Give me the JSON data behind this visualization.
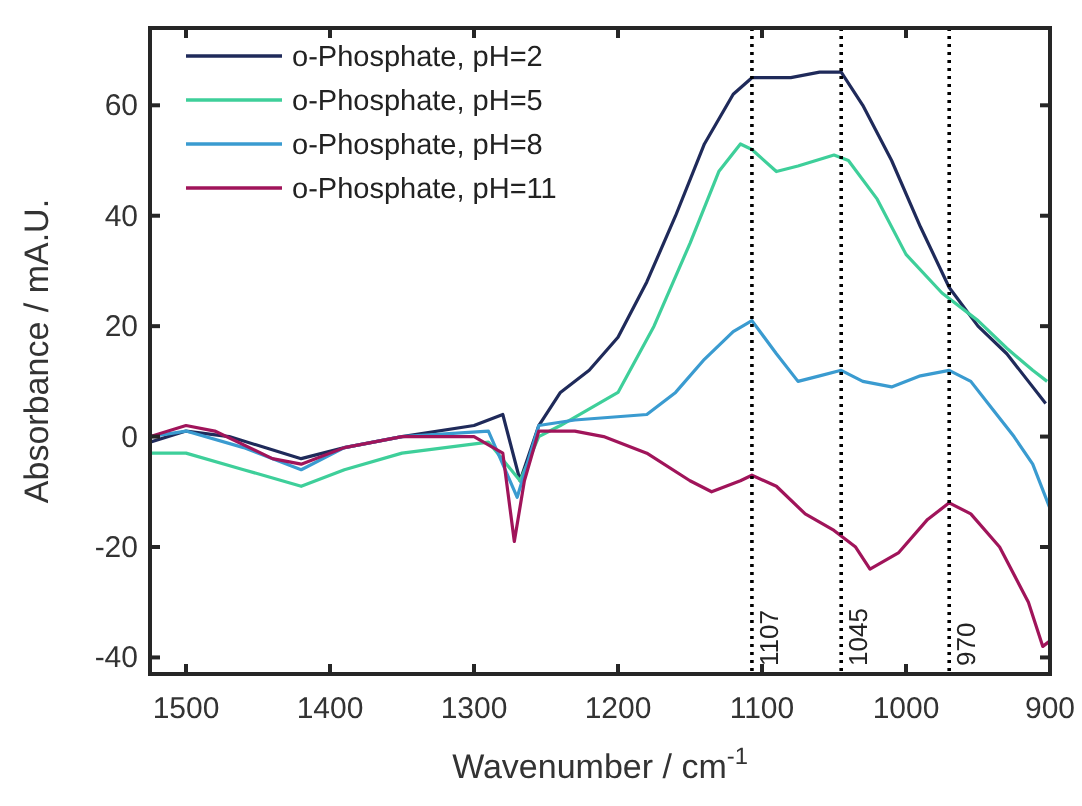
{
  "chart_data": {
    "type": "line",
    "xlabel": "Wavenumber / cm$^{-1}$",
    "ylabel": "Absorbance / mA.U.",
    "xlim": [
      1525,
      900
    ],
    "xticks": [
      1500,
      1400,
      1300,
      1200,
      1100,
      1000,
      900
    ],
    "ylim": [
      -43,
      74
    ],
    "yticks": [
      -40,
      -20,
      0,
      20,
      40,
      60
    ],
    "grid": false,
    "legend": "top left",
    "marker": "none",
    "line_style": "solid",
    "ref_lines": [
      {
        "axis": "x",
        "value": 1107,
        "label": "1107",
        "line_style": "dotted",
        "color": "#000000"
      },
      {
        "axis": "x",
        "value": 1045,
        "label": "1045",
        "line_style": "dotted",
        "color": "#000000"
      },
      {
        "axis": "x",
        "value": 970,
        "label": "970",
        "line_style": "dotted",
        "color": "#000000"
      }
    ],
    "series": [
      {
        "name": "o-Phosphate, pH=2",
        "color": "#1f2a5a",
        "x": [
          1525,
          1500,
          1470,
          1420,
          1390,
          1350,
          1300,
          1280,
          1268,
          1255,
          1240,
          1220,
          1200,
          1180,
          1160,
          1140,
          1120,
          1107,
          1080,
          1060,
          1045,
          1030,
          1010,
          990,
          970,
          950,
          930,
          915,
          903
        ],
        "values": [
          -1,
          1,
          0,
          -4,
          -2,
          0,
          2,
          4,
          -8,
          2,
          8,
          12,
          18,
          28,
          40,
          53,
          62,
          65,
          65,
          66,
          66,
          60,
          50,
          38,
          27,
          20,
          15,
          10,
          6
        ]
      },
      {
        "name": "o-Phosphate, pH=5",
        "color": "#3ecf9a",
        "x": [
          1525,
          1500,
          1460,
          1420,
          1390,
          1350,
          1290,
          1268,
          1255,
          1240,
          1200,
          1175,
          1150,
          1130,
          1115,
          1107,
          1090,
          1075,
          1050,
          1040,
          1020,
          1000,
          975,
          950,
          930,
          912,
          902
        ],
        "values": [
          -3,
          -3,
          -6,
          -9,
          -6,
          -3,
          -1,
          -8,
          0,
          2,
          8,
          20,
          35,
          48,
          53,
          52,
          48,
          49,
          51,
          50,
          43,
          33,
          26,
          21,
          16,
          12,
          10
        ]
      },
      {
        "name": "o-Phosphate, pH=8",
        "color": "#3a9bd0",
        "x": [
          1525,
          1500,
          1460,
          1420,
          1390,
          1350,
          1290,
          1270,
          1255,
          1230,
          1180,
          1160,
          1140,
          1120,
          1107,
          1090,
          1075,
          1060,
          1045,
          1030,
          1010,
          990,
          970,
          955,
          940,
          925,
          912,
          900
        ],
        "values": [
          0,
          1,
          -2,
          -6,
          -2,
          0,
          1,
          -11,
          2,
          3,
          4,
          8,
          14,
          19,
          21,
          15,
          10,
          11,
          12,
          10,
          9,
          11,
          12,
          10,
          5,
          0,
          -5,
          -13
        ]
      },
      {
        "name": "o-Phosphate, pH=11",
        "color": "#a0145a",
        "x": [
          1525,
          1500,
          1480,
          1440,
          1420,
          1390,
          1350,
          1300,
          1280,
          1272,
          1265,
          1255,
          1230,
          1210,
          1180,
          1150,
          1135,
          1115,
          1107,
          1090,
          1070,
          1050,
          1035,
          1025,
          1005,
          985,
          970,
          955,
          935,
          915,
          905,
          900
        ],
        "values": [
          0,
          2,
          1,
          -4,
          -5,
          -2,
          0,
          0,
          -3,
          -19,
          -8,
          1,
          1,
          0,
          -3,
          -8,
          -10,
          -8,
          -7,
          -9,
          -14,
          -17,
          -20,
          -24,
          -21,
          -15,
          -12,
          -14,
          -20,
          -30,
          -38,
          -37
        ]
      }
    ]
  }
}
